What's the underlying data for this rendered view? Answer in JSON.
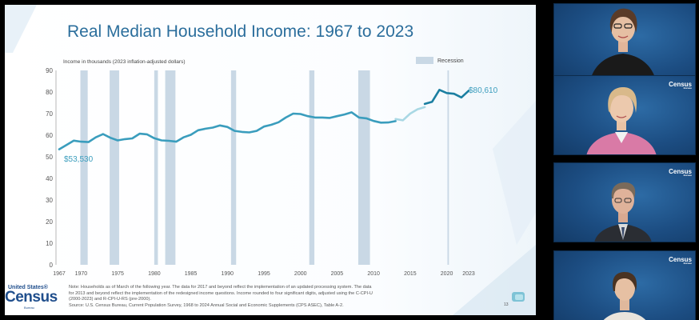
{
  "slide": {
    "title": "Real Median Household Income: 1967 to 2023",
    "ylabel": "Income in thousands (2023 inflation-adjusted dollars)",
    "legend_recession": "Recession",
    "start_label": "$53,530",
    "end_label": "$80,610",
    "footnote": [
      "Note: Households as of March of the following year. The data for 2017 and beyond reflect the implementation of an updated processing system. The data",
      "for 2013 and beyond reflect the implementation of the redesigned income questions. Income rounded to four significant digits, adjusted using the C-CPI-U",
      "(2000-2023) and R-CPI-U-RS (pre-2000).",
      "Source: U.S. Census Bureau, Current Population Survey, 1968 to 2024 Annual Social and Economic Supplements (CPS ASEC), Table A-2."
    ],
    "logo_top": "United States®",
    "logo_main": "Census",
    "logo_sub": "Bureau",
    "slide_number": "13"
  },
  "chart_data": {
    "type": "line",
    "title": "Real Median Household Income: 1967 to 2023",
    "ylabel": "Income in thousands (2023 inflation-adjusted dollars)",
    "xlabel": "",
    "ylim": [
      0,
      90
    ],
    "yticks": [
      0,
      10,
      20,
      30,
      40,
      50,
      60,
      70,
      80,
      90
    ],
    "xticks": [
      "1967",
      "1970",
      "1975",
      "1980",
      "1985",
      "1990",
      "1995",
      "2000",
      "2005",
      "2010",
      "2015",
      "2020",
      "2023"
    ],
    "xtick_values": [
      1967,
      1970,
      1975,
      1980,
      1985,
      1990,
      1995,
      2000,
      2005,
      2010,
      2015,
      2020,
      2023
    ],
    "xlim": [
      1967,
      2023
    ],
    "grid": false,
    "legend": "top-right",
    "recessions": [
      [
        1969.9,
        1970.9
      ],
      [
        1973.9,
        1975.2
      ],
      [
        1980.0,
        1980.5
      ],
      [
        1981.5,
        1982.9
      ],
      [
        1990.5,
        1991.2
      ],
      [
        2001.2,
        2001.9
      ],
      [
        2007.9,
        2009.5
      ],
      [
        2020.1,
        2020.3
      ]
    ],
    "series": [
      {
        "color": "#3a9dbd",
        "x": [
          1967,
          1968,
          1969,
          1970,
          1971,
          1972,
          1973,
          1974,
          1975,
          1976,
          1977,
          1978,
          1979,
          1980,
          1981,
          1982,
          1983,
          1984,
          1985,
          1986,
          1987,
          1988,
          1989,
          1990,
          1991,
          1992,
          1993,
          1994,
          1995,
          1996,
          1997,
          1998,
          1999,
          2000,
          2001,
          2002,
          2003,
          2004,
          2005,
          2006,
          2007,
          2008,
          2009,
          2010,
          2011,
          2012,
          2013
        ],
        "y": [
          53.5,
          55.5,
          57.5,
          57.0,
          56.8,
          59.0,
          60.5,
          58.8,
          57.6,
          58.2,
          58.5,
          60.7,
          60.4,
          58.6,
          57.6,
          57.4,
          57.0,
          59.0,
          60.2,
          62.3,
          63.0,
          63.5,
          64.5,
          63.8,
          62.0,
          61.5,
          61.3,
          62.0,
          64.0,
          64.8,
          66.0,
          68.2,
          70.0,
          69.8,
          68.8,
          68.2,
          68.2,
          68.0,
          68.8,
          69.6,
          70.6,
          68.2,
          67.8,
          66.6,
          65.8,
          65.9,
          66.5
        ]
      },
      {
        "color": "#a9d8e4",
        "x": [
          2013,
          2014,
          2015,
          2016,
          2017
        ],
        "y": [
          67.5,
          66.9,
          70.0,
          72.0,
          73.0
        ]
      },
      {
        "color": "#1b7fa1",
        "x": [
          2017,
          2018,
          2019,
          2020,
          2021,
          2022,
          2023
        ],
        "y": [
          74.5,
          75.5,
          81.0,
          79.5,
          79.2,
          77.5,
          80.6
        ]
      }
    ],
    "annotations": [
      "$53,530",
      "$80,610"
    ]
  },
  "gallery": {
    "logo_text": "Census",
    "logo_sub": "Bureau"
  },
  "colors": {
    "title": "#2b6e9c",
    "line": "#3a9dbd",
    "recession": "#c9d8e5",
    "tile_bg": "#1b4f87"
  }
}
